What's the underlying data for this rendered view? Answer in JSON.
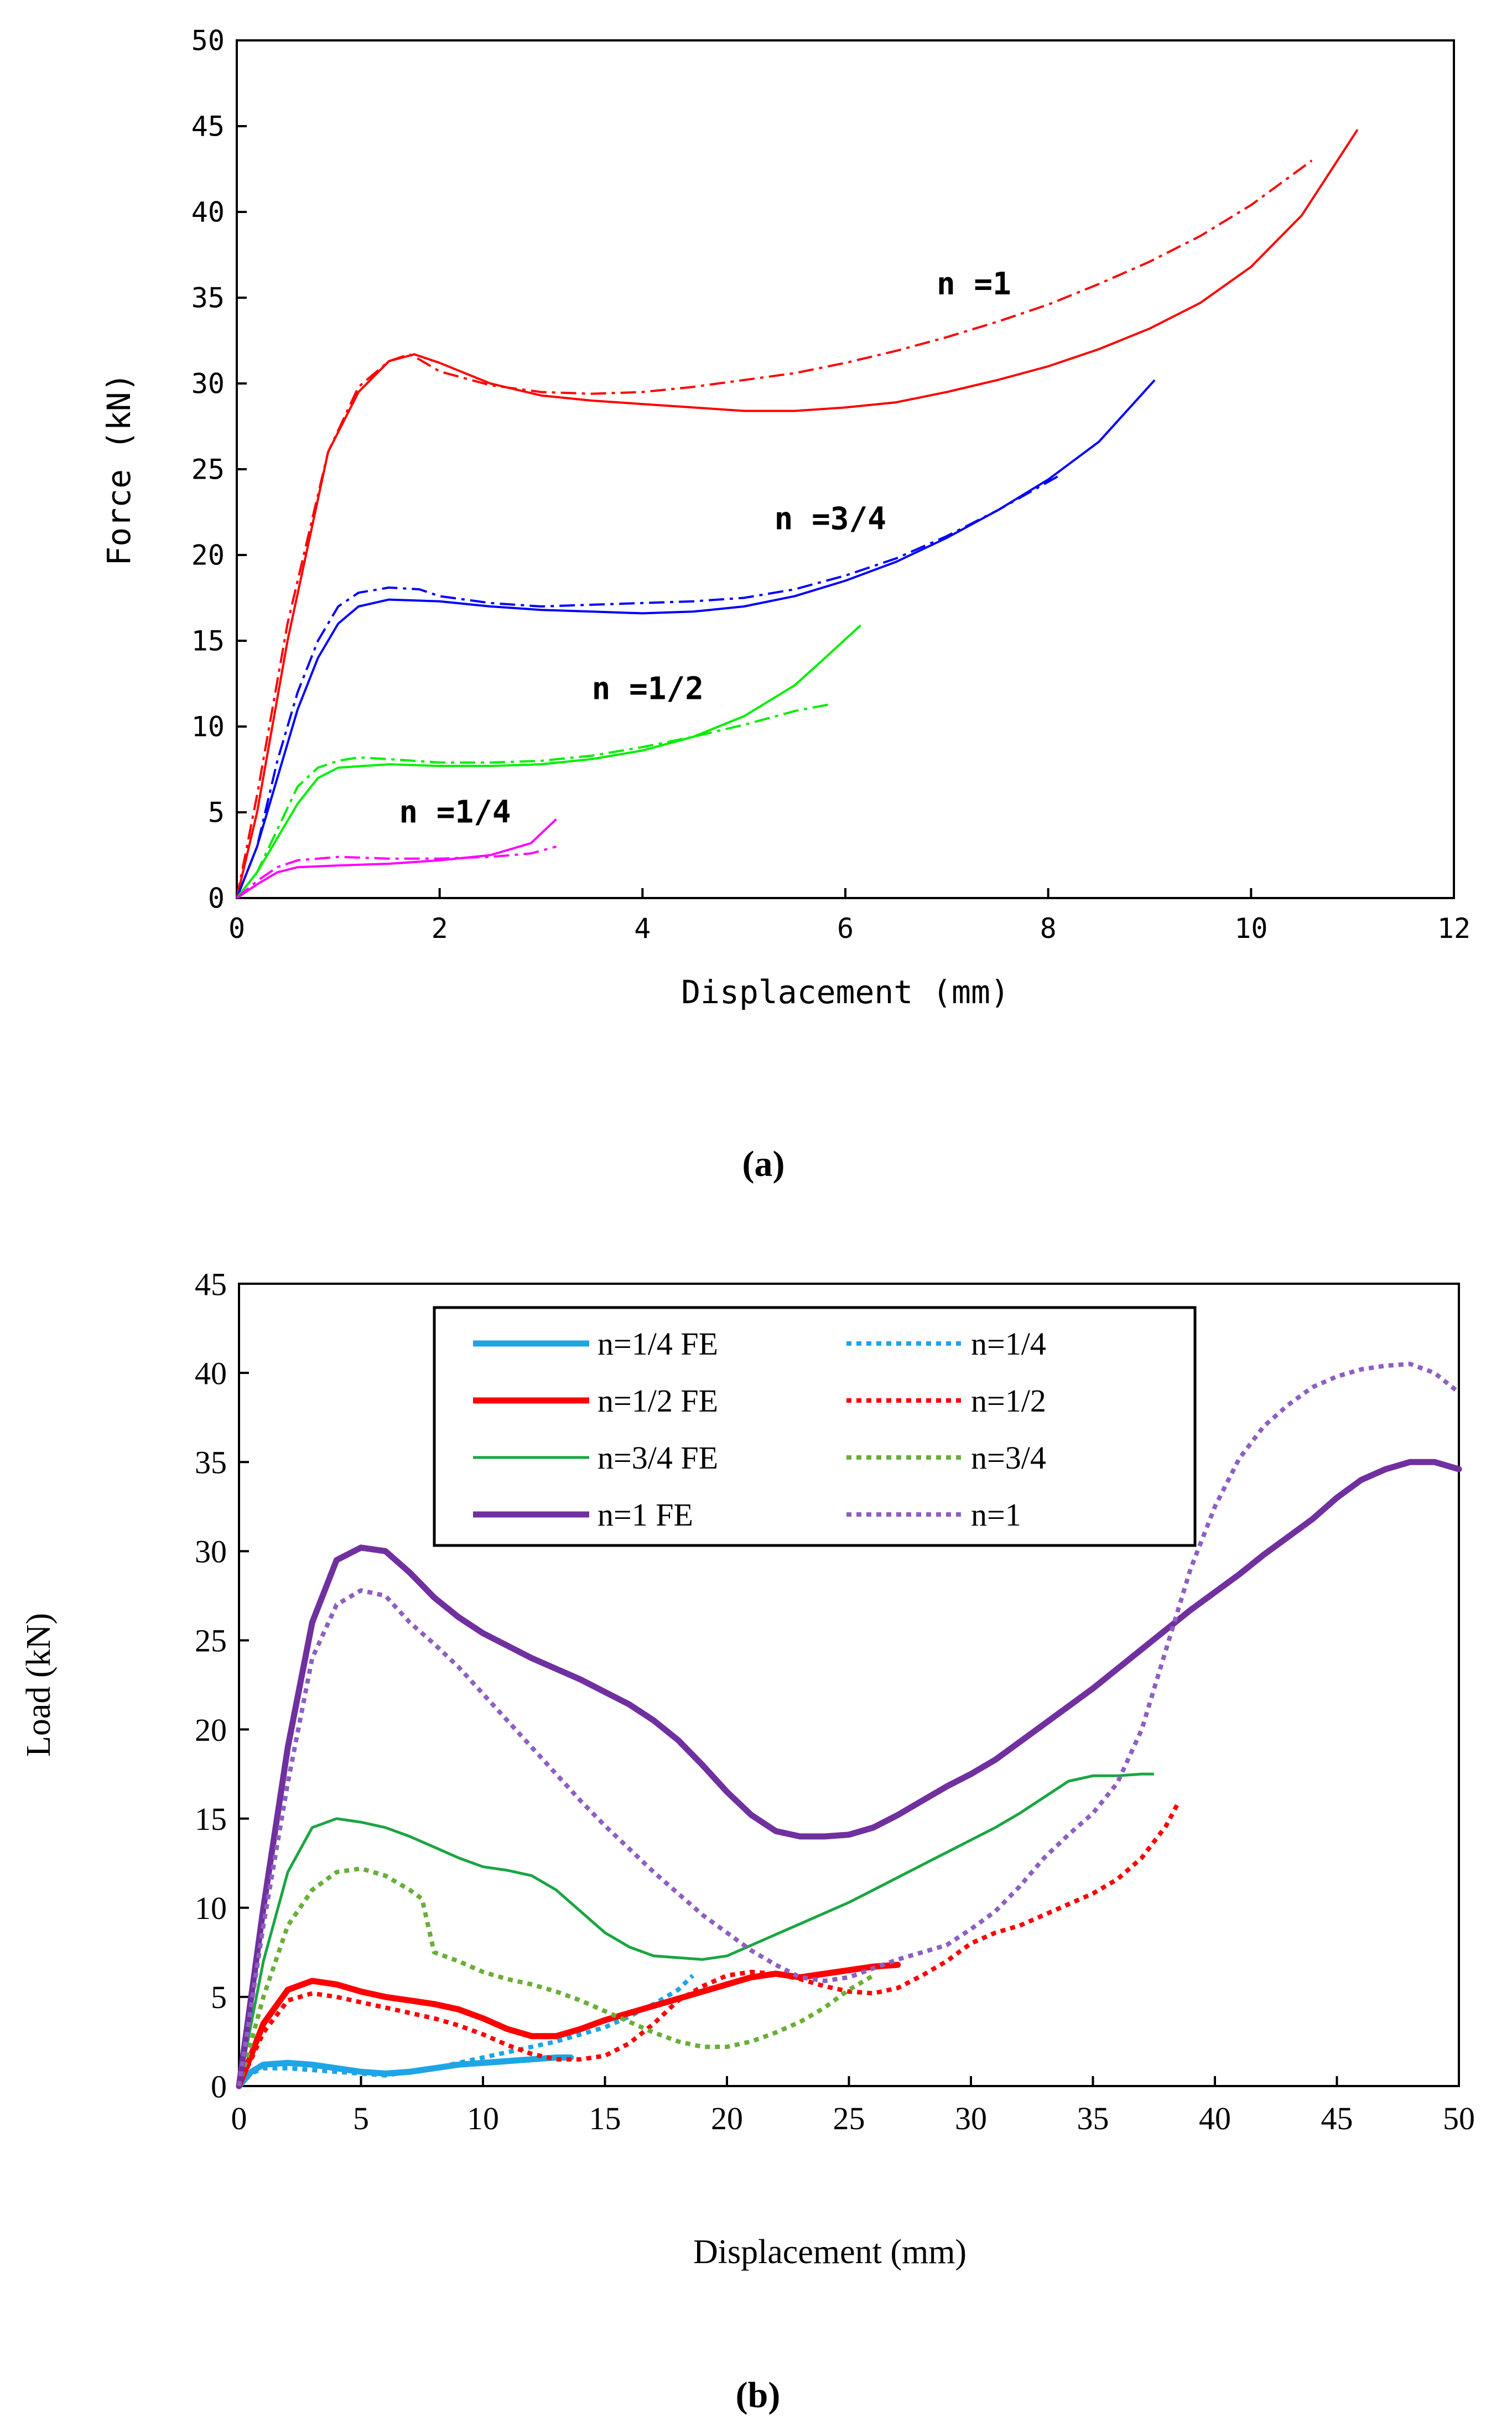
{
  "chart_data": [
    {
      "panel_label": "(a)",
      "type": "line",
      "xlabel": "Displacement (mm)",
      "ylabel": "Force (kN)",
      "xlim": [
        0,
        12
      ],
      "ylim": [
        0,
        50
      ],
      "xticks": [
        "0",
        "2",
        "4",
        "6",
        "8",
        "10",
        "12"
      ],
      "yticks": [
        "0",
        "5",
        "10",
        "15",
        "20",
        "25",
        "30",
        "35",
        "40",
        "45",
        "50"
      ],
      "annotations": [
        {
          "text": "n =1",
          "x": 6.9,
          "y": 35.2,
          "color": "#000000"
        },
        {
          "text": "n =3/4",
          "x": 5.3,
          "y": 21.5,
          "color": "#000000"
        },
        {
          "text": "n =1/2",
          "x": 3.5,
          "y": 11.6,
          "color": "#000000"
        },
        {
          "text": "n =1/4",
          "x": 1.6,
          "y": 4.4,
          "color": "#000000"
        }
      ],
      "series": [
        {
          "name": "n=1",
          "style": "solid",
          "color": "#ff0000",
          "x": [
            0,
            0.2,
            0.5,
            0.9,
            1.2,
            1.5,
            1.75,
            2.0,
            2.5,
            3.0,
            3.5,
            4.0,
            4.5,
            5.0,
            5.5,
            6.0,
            6.5,
            7.0,
            7.5,
            8.0,
            8.5,
            9.0,
            9.5,
            10.0,
            10.5,
            11.05
          ],
          "y": [
            0,
            5,
            15,
            26,
            29.5,
            31.3,
            31.7,
            31.2,
            30.0,
            29.3,
            29.0,
            28.8,
            28.6,
            28.4,
            28.4,
            28.6,
            28.9,
            29.5,
            30.2,
            31.0,
            32.0,
            33.2,
            34.7,
            36.8,
            39.8,
            44.8
          ]
        },
        {
          "name": "n=1 (dash-dot)",
          "style": "dashdot",
          "color": "#ff0000",
          "x": [
            0,
            0.2,
            0.5,
            0.9,
            1.2,
            1.5,
            1.7,
            1.8,
            2.0,
            2.5,
            3.0,
            3.5,
            4.0,
            4.5,
            5.0,
            5.5,
            6.0,
            6.5,
            7.0,
            7.5,
            8.0,
            8.5,
            9.0,
            9.5,
            10.0,
            10.6
          ],
          "y": [
            0,
            6,
            16,
            26,
            29.8,
            31.3,
            31.7,
            31.4,
            30.7,
            29.9,
            29.5,
            29.4,
            29.5,
            29.8,
            30.2,
            30.6,
            31.2,
            31.9,
            32.7,
            33.6,
            34.6,
            35.8,
            37.1,
            38.6,
            40.4,
            43.0
          ]
        },
        {
          "name": "n=3/4",
          "style": "solid",
          "color": "#0000ff",
          "x": [
            0,
            0.2,
            0.4,
            0.6,
            0.8,
            1.0,
            1.2,
            1.5,
            2.0,
            2.5,
            3.0,
            3.5,
            4.0,
            4.5,
            5.0,
            5.5,
            6.0,
            6.5,
            7.0,
            7.5,
            8.0,
            8.5,
            9.05
          ],
          "y": [
            0,
            3,
            7,
            11,
            14,
            16,
            17,
            17.4,
            17.3,
            17.0,
            16.8,
            16.7,
            16.6,
            16.7,
            17.0,
            17.6,
            18.5,
            19.6,
            21.0,
            22.6,
            24.4,
            26.6,
            30.2
          ]
        },
        {
          "name": "n=3/4 (dash-dot)",
          "style": "dashdot",
          "color": "#0000ff",
          "x": [
            0,
            0.2,
            0.4,
            0.6,
            0.8,
            1.0,
            1.2,
            1.5,
            1.8,
            2.0,
            2.5,
            3.0,
            3.5,
            4.0,
            4.5,
            5.0,
            5.5,
            6.0,
            6.5,
            7.0,
            7.5,
            8.1
          ],
          "y": [
            0,
            3,
            8,
            12,
            15,
            17,
            17.8,
            18.1,
            18.0,
            17.6,
            17.2,
            17.0,
            17.1,
            17.2,
            17.3,
            17.5,
            18.0,
            18.8,
            19.8,
            21.1,
            22.6,
            24.6
          ]
        },
        {
          "name": "n=1/2",
          "style": "solid",
          "color": "#00ee00",
          "x": [
            0,
            0.2,
            0.4,
            0.6,
            0.8,
            1.0,
            1.5,
            2.0,
            2.5,
            3.0,
            3.5,
            4.0,
            4.5,
            5.0,
            5.5,
            5.8,
            6.15
          ],
          "y": [
            0,
            1.5,
            3.5,
            5.5,
            7.0,
            7.6,
            7.8,
            7.7,
            7.7,
            7.8,
            8.1,
            8.6,
            9.4,
            10.6,
            12.4,
            14.0,
            15.9
          ]
        },
        {
          "name": "n=1/2 (dash-dot)",
          "style": "dashdot",
          "color": "#00ee00",
          "x": [
            0,
            0.2,
            0.4,
            0.6,
            0.8,
            1.0,
            1.2,
            1.5,
            2.0,
            2.5,
            3.0,
            3.5,
            4.0,
            4.5,
            5.0,
            5.5,
            5.85
          ],
          "y": [
            0,
            1.5,
            4,
            6.5,
            7.6,
            8.0,
            8.2,
            8.1,
            7.9,
            7.9,
            8.0,
            8.3,
            8.8,
            9.4,
            10.1,
            10.9,
            11.3
          ]
        },
        {
          "name": "n=1/4",
          "style": "solid",
          "color": "#ff00ff",
          "x": [
            0,
            0.2,
            0.4,
            0.6,
            1.0,
            1.5,
            2.0,
            2.5,
            2.9,
            3.15
          ],
          "y": [
            0,
            0.8,
            1.5,
            1.8,
            1.9,
            2.0,
            2.2,
            2.5,
            3.2,
            4.6
          ]
        },
        {
          "name": "n=1/4 (dash-dot)",
          "style": "dashdot",
          "color": "#ff00ff",
          "x": [
            0,
            0.2,
            0.4,
            0.6,
            0.8,
            1.0,
            1.5,
            2.0,
            2.5,
            2.9,
            3.15
          ],
          "y": [
            0,
            1.0,
            1.8,
            2.2,
            2.3,
            2.4,
            2.3,
            2.3,
            2.4,
            2.6,
            3.0
          ]
        }
      ]
    },
    {
      "panel_label": "(b)",
      "type": "line",
      "xlabel": "Displacement (mm)",
      "ylabel": "Load (kN)",
      "xlim": [
        0,
        50
      ],
      "ylim": [
        0,
        45
      ],
      "xticks": [
        "0",
        "5",
        "10",
        "15",
        "20",
        "25",
        "30",
        "35",
        "40",
        "45",
        "50"
      ],
      "yticks": [
        "0",
        "5",
        "10",
        "15",
        "20",
        "25",
        "30",
        "35",
        "40",
        "45"
      ],
      "legend_position": "top-center",
      "series": [
        {
          "name": "n=1/4 FE",
          "style": "solid-thick",
          "color": "#1ea5e6",
          "x": [
            0,
            0.5,
            1,
            2,
            3,
            4,
            5,
            6,
            7,
            8,
            9,
            10,
            11,
            12,
            13,
            13.6
          ],
          "y": [
            0,
            0.8,
            1.2,
            1.3,
            1.2,
            1.0,
            0.8,
            0.7,
            0.8,
            1.0,
            1.2,
            1.3,
            1.4,
            1.5,
            1.6,
            1.6
          ]
        },
        {
          "name": "n=1/4",
          "style": "dotted",
          "color": "#1ea5e6",
          "x": [
            0,
            0.5,
            1,
            2,
            3,
            4,
            5,
            6,
            7,
            8,
            9,
            10,
            11,
            12,
            13,
            14,
            15,
            16,
            17,
            18,
            18.6
          ],
          "y": [
            0,
            0.7,
            1.0,
            1.0,
            0.9,
            0.8,
            0.7,
            0.6,
            0.8,
            1.0,
            1.3,
            1.6,
            1.9,
            2.2,
            2.5,
            2.9,
            3.3,
            3.9,
            4.6,
            5.4,
            6.2
          ]
        },
        {
          "name": "n=1/2 FE",
          "style": "solid-thick",
          "color": "#ff0000",
          "x": [
            0,
            1,
            2,
            3,
            4,
            5,
            6,
            7,
            8,
            9,
            10,
            11,
            12,
            13,
            14,
            15,
            16,
            17,
            18,
            19,
            20,
            21,
            22,
            23,
            24,
            25,
            26,
            27
          ],
          "y": [
            0,
            3.5,
            5.4,
            5.9,
            5.7,
            5.3,
            5.0,
            4.8,
            4.6,
            4.3,
            3.8,
            3.2,
            2.8,
            2.8,
            3.2,
            3.7,
            4.1,
            4.5,
            4.9,
            5.3,
            5.7,
            6.1,
            6.3,
            6.1,
            6.3,
            6.5,
            6.7,
            6.8
          ]
        },
        {
          "name": "n=1/2",
          "style": "dotted",
          "color": "#ff0000",
          "x": [
            0,
            1,
            2,
            3,
            4,
            5,
            6,
            7,
            8,
            9,
            10,
            11,
            12,
            13,
            14,
            15,
            16,
            17,
            18,
            19,
            20,
            21,
            22,
            23,
            24,
            25,
            26,
            27,
            28,
            29,
            30,
            31,
            32,
            33,
            34,
            35,
            36,
            37,
            38,
            38.5
          ],
          "y": [
            0,
            3.0,
            4.8,
            5.2,
            5.0,
            4.7,
            4.4,
            4.1,
            3.8,
            3.4,
            2.9,
            2.3,
            1.8,
            1.5,
            1.5,
            1.7,
            2.4,
            3.5,
            4.8,
            5.6,
            6.2,
            6.4,
            6.3,
            6.0,
            5.6,
            5.3,
            5.2,
            5.5,
            6.2,
            7.0,
            8.0,
            8.6,
            9.0,
            9.6,
            10.2,
            10.8,
            11.6,
            12.8,
            14.6,
            15.9
          ]
        },
        {
          "name": "n=3/4 FE",
          "style": "solid",
          "color": "#1aa541",
          "x": [
            0,
            1,
            2,
            3,
            4,
            5,
            6,
            7,
            8,
            9,
            10,
            11,
            12,
            13,
            14,
            15,
            16,
            17,
            18,
            19,
            20,
            21,
            22,
            23,
            24,
            25,
            26,
            27,
            28,
            29,
            30,
            31,
            32,
            33,
            34,
            35,
            36,
            37,
            37.5
          ],
          "y": [
            0,
            7,
            12,
            14.5,
            15.0,
            14.8,
            14.5,
            14.0,
            13.4,
            12.8,
            12.3,
            12.1,
            11.8,
            11.0,
            9.8,
            8.6,
            7.8,
            7.3,
            7.2,
            7.1,
            7.3,
            7.9,
            8.5,
            9.1,
            9.7,
            10.3,
            11.0,
            11.7,
            12.4,
            13.1,
            13.8,
            14.5,
            15.3,
            16.2,
            17.1,
            17.4,
            17.4,
            17.5,
            17.5
          ]
        },
        {
          "name": "n=3/4",
          "style": "dotted",
          "color": "#6aae3a",
          "x": [
            0,
            1,
            2,
            3,
            4,
            5,
            6,
            7,
            7.5,
            8,
            9,
            10,
            11,
            12,
            13,
            14,
            15,
            16,
            17,
            18,
            19,
            20,
            21,
            22,
            23,
            24,
            25,
            26
          ],
          "y": [
            0,
            5,
            9,
            11,
            12,
            12.2,
            11.8,
            11.0,
            10.5,
            7.5,
            7.0,
            6.4,
            6.0,
            5.7,
            5.3,
            4.8,
            4.2,
            3.6,
            3.0,
            2.5,
            2.2,
            2.2,
            2.5,
            3.0,
            3.6,
            4.4,
            5.4,
            6.2
          ]
        },
        {
          "name": "n=1 FE",
          "style": "solid-thick",
          "color": "#7030a0",
          "x": [
            0,
            1,
            2,
            3,
            4,
            5,
            6,
            7,
            8,
            9,
            10,
            11,
            12,
            13,
            14,
            15,
            16,
            17,
            18,
            19,
            20,
            21,
            22,
            23,
            24,
            25,
            26,
            27,
            28,
            29,
            30,
            31,
            32,
            33,
            34,
            35,
            36,
            37,
            38,
            39,
            40,
            41,
            42,
            43,
            44,
            45,
            46,
            47,
            48,
            49,
            50
          ],
          "y": [
            0,
            10,
            19,
            26,
            29.5,
            30.2,
            30.0,
            28.8,
            27.4,
            26.3,
            25.4,
            24.7,
            24.0,
            23.4,
            22.8,
            22.1,
            21.4,
            20.5,
            19.4,
            18.0,
            16.5,
            15.2,
            14.3,
            14.0,
            14.0,
            14.1,
            14.5,
            15.2,
            16.0,
            16.8,
            17.5,
            18.3,
            19.3,
            20.3,
            21.3,
            22.3,
            23.4,
            24.5,
            25.6,
            26.7,
            27.7,
            28.7,
            29.8,
            30.8,
            31.8,
            33.0,
            34.0,
            34.6,
            35.0,
            35.0,
            34.6
          ]
        },
        {
          "name": "n=1",
          "style": "dotted",
          "color": "#8e5fc2",
          "x": [
            0,
            1,
            2,
            3,
            4,
            5,
            6,
            7,
            8,
            9,
            10,
            11,
            12,
            13,
            14,
            15,
            16,
            17,
            18,
            19,
            20,
            21,
            22,
            23,
            24,
            25,
            26,
            27,
            28,
            29,
            30,
            31,
            32,
            33,
            34,
            35,
            36,
            37,
            38,
            39,
            40,
            41,
            42,
            43,
            44,
            45,
            46,
            47,
            48,
            49,
            50
          ],
          "y": [
            0,
            9,
            17,
            24,
            27.0,
            27.8,
            27.5,
            26.0,
            24.8,
            23.5,
            22.0,
            20.5,
            19.0,
            17.5,
            16.0,
            14.6,
            13.3,
            12.0,
            10.8,
            9.6,
            8.6,
            7.6,
            6.8,
            6.1,
            5.9,
            6.1,
            6.6,
            7.1,
            7.5,
            7.9,
            8.8,
            9.8,
            11.2,
            12.8,
            14.1,
            15.3,
            17.0,
            20.0,
            24.5,
            29.0,
            32.5,
            35.2,
            37.0,
            38.2,
            39.2,
            39.8,
            40.2,
            40.4,
            40.5,
            40.0,
            38.9
          ]
        }
      ]
    }
  ],
  "captions": {
    "a": "(a)",
    "b": "(b)"
  }
}
